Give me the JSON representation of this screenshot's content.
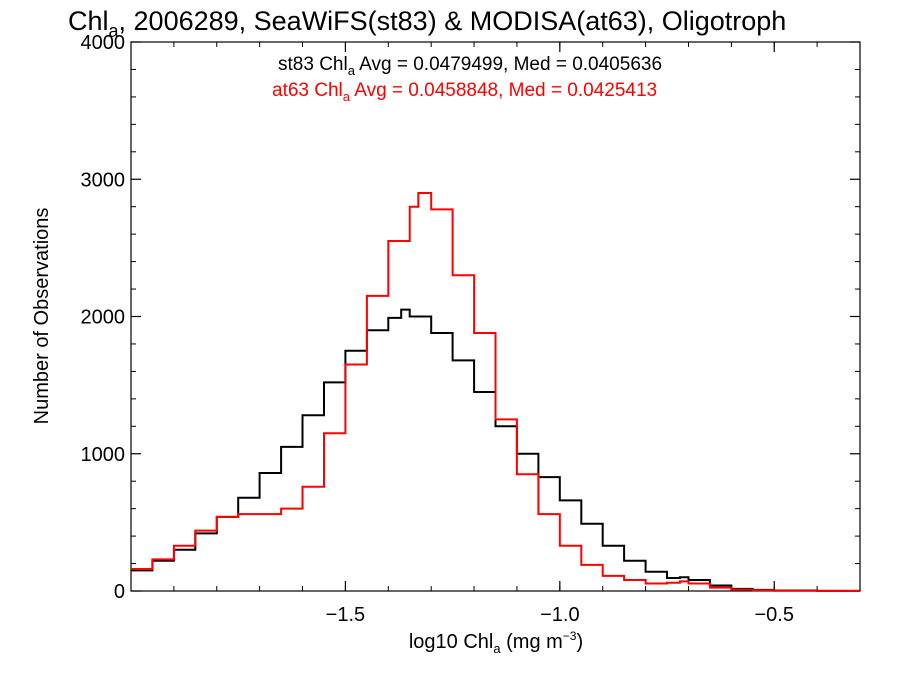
{
  "chart_data": {
    "type": "line",
    "title": {
      "pre": "Chl",
      "sub": "a",
      "post": ", 2006289, SeaWiFS(st83) & MODISA(at63), Oligotroph"
    },
    "xlabel": {
      "pre": "log10 Chl",
      "sub": "a",
      "mid": " (mg m",
      "sup": "−3",
      "post": ")"
    },
    "ylabel": "Number of Observations",
    "xlim": [
      -2.0,
      -0.3
    ],
    "ylim": [
      0,
      4000
    ],
    "xticks": [
      -1.5,
      -1.0,
      -0.5
    ],
    "xtick_labels": [
      "−1.5",
      "−1.0",
      "−0.5"
    ],
    "yticks": [
      0,
      1000,
      2000,
      3000,
      4000
    ],
    "ytick_labels": [
      "0",
      "1000",
      "2000",
      "3000",
      "4000"
    ],
    "grid": false,
    "legend_position": "top",
    "series": [
      {
        "name": "st83",
        "color": "#000000",
        "stat": {
          "pre": "st83 Chl",
          "sub": "a",
          "post": " Avg = 0.0479499, Med = 0.0405636"
        },
        "points": [
          [
            -2.0,
            150
          ],
          [
            -1.95,
            220
          ],
          [
            -1.9,
            300
          ],
          [
            -1.85,
            420
          ],
          [
            -1.8,
            540
          ],
          [
            -1.75,
            680
          ],
          [
            -1.7,
            860
          ],
          [
            -1.65,
            1050
          ],
          [
            -1.6,
            1280
          ],
          [
            -1.55,
            1520
          ],
          [
            -1.5,
            1750
          ],
          [
            -1.45,
            1900
          ],
          [
            -1.4,
            1990
          ],
          [
            -1.37,
            2050
          ],
          [
            -1.35,
            2000
          ],
          [
            -1.3,
            1880
          ],
          [
            -1.25,
            1680
          ],
          [
            -1.2,
            1450
          ],
          [
            -1.15,
            1200
          ],
          [
            -1.1,
            1000
          ],
          [
            -1.05,
            830
          ],
          [
            -1.0,
            660
          ],
          [
            -0.95,
            490
          ],
          [
            -0.9,
            330
          ],
          [
            -0.85,
            220
          ],
          [
            -0.8,
            140
          ],
          [
            -0.75,
            95
          ],
          [
            -0.72,
            100
          ],
          [
            -0.7,
            80
          ],
          [
            -0.65,
            40
          ],
          [
            -0.6,
            15
          ],
          [
            -0.55,
            8
          ],
          [
            -0.5,
            4
          ],
          [
            -0.4,
            1
          ],
          [
            -0.3,
            0
          ]
        ]
      },
      {
        "name": "at63",
        "color": "#ff0000",
        "stat": {
          "pre": "at63 Chl",
          "sub": "a",
          "post": " Avg = 0.0458848, Med = 0.0425413"
        },
        "points": [
          [
            -2.0,
            160
          ],
          [
            -1.95,
            230
          ],
          [
            -1.9,
            330
          ],
          [
            -1.85,
            440
          ],
          [
            -1.8,
            540
          ],
          [
            -1.75,
            560
          ],
          [
            -1.7,
            560
          ],
          [
            -1.65,
            600
          ],
          [
            -1.6,
            760
          ],
          [
            -1.55,
            1150
          ],
          [
            -1.5,
            1650
          ],
          [
            -1.45,
            2150
          ],
          [
            -1.4,
            2550
          ],
          [
            -1.35,
            2800
          ],
          [
            -1.33,
            2900
          ],
          [
            -1.3,
            2780
          ],
          [
            -1.25,
            2300
          ],
          [
            -1.2,
            1880
          ],
          [
            -1.15,
            1250
          ],
          [
            -1.1,
            850
          ],
          [
            -1.05,
            560
          ],
          [
            -1.0,
            330
          ],
          [
            -0.95,
            190
          ],
          [
            -0.9,
            110
          ],
          [
            -0.85,
            80
          ],
          [
            -0.8,
            55
          ],
          [
            -0.75,
            60
          ],
          [
            -0.72,
            70
          ],
          [
            -0.7,
            55
          ],
          [
            -0.65,
            25
          ],
          [
            -0.6,
            10
          ],
          [
            -0.55,
            5
          ],
          [
            -0.5,
            2
          ],
          [
            -0.4,
            1
          ],
          [
            -0.3,
            0
          ]
        ]
      }
    ]
  }
}
